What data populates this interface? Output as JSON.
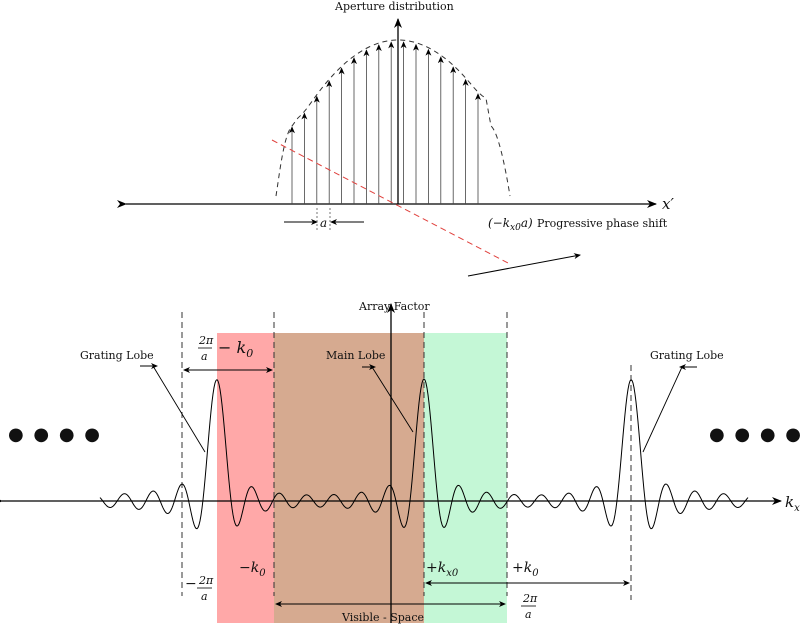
{
  "top": {
    "title": "Aperture distribution",
    "axis_label": "x′",
    "spacing_label": "a",
    "phase_math": "(−k",
    "phase_math_sub": "x0",
    "phase_math_tail": "a)",
    "phase_label": "Progressive phase shift"
  },
  "bottom": {
    "title": "Array Factor",
    "axis_label": "k",
    "axis_label_sub": "x",
    "grating_lobe_left": "Grating Lobe",
    "grating_lobe_right": "Grating Lobe",
    "main_lobe": "Main Lobe",
    "frac_num": "2π",
    "frac_den": "a",
    "minus_k0_tail": "− k",
    "minus_k0_sub": "0",
    "neg_label": "−",
    "neg_k0": "−k",
    "neg_k0_sub": "0",
    "pos_kx0": "+k",
    "pos_kx0_sub": "x0",
    "pos_k0": "+k",
    "pos_k0_sub": "0",
    "visible_space": "Visible - Space",
    "ellipsis_left": "● ● ● ●",
    "ellipsis_right": "● ● ● ●"
  },
  "colors": {
    "red_band": "#ffa8a8",
    "brown_band": "#d6aa90",
    "green_band": "#c4f7d6",
    "phase_line": "#e0403c"
  }
}
